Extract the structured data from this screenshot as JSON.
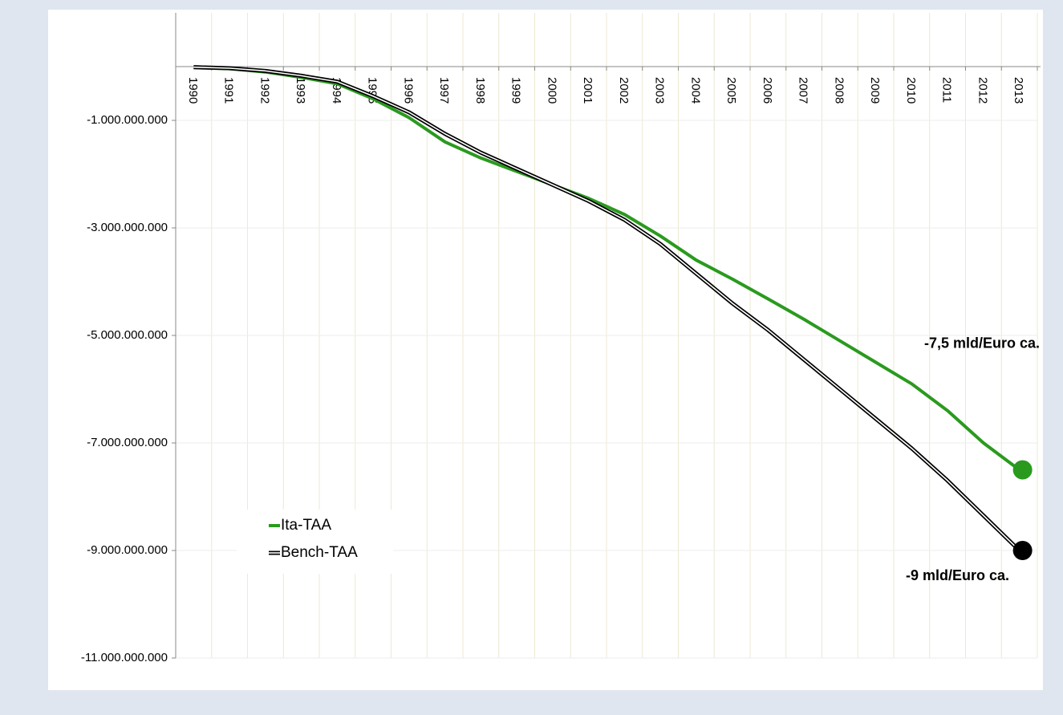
{
  "chart_data": {
    "type": "line",
    "categories": [
      "1990",
      "1991",
      "1992",
      "1993",
      "1994",
      "1995",
      "1996",
      "1997",
      "1998",
      "1999",
      "2000",
      "2001",
      "2002",
      "2003",
      "2004",
      "2005",
      "2006",
      "2007",
      "2008",
      "2009",
      "2010",
      "2011",
      "2012",
      "2013"
    ],
    "series": [
      {
        "name": "Ita-TAA",
        "color": "#2a9a1e",
        "values": [
          -20000000,
          -40000000,
          -100000000,
          -200000000,
          -320000000,
          -600000000,
          -950000000,
          -1400000000,
          -1700000000,
          -1950000000,
          -2200000000,
          -2450000000,
          -2750000000,
          -3150000000,
          -3600000000,
          -3950000000,
          -4320000000,
          -4700000000,
          -5100000000,
          -5500000000,
          -5900000000,
          -6400000000,
          -7000000000,
          -7500000000
        ]
      },
      {
        "name": "Bench-TAA",
        "color": "#000000",
        "values": [
          -10000000,
          -30000000,
          -80000000,
          -170000000,
          -280000000,
          -550000000,
          -850000000,
          -1250000000,
          -1600000000,
          -1900000000,
          -2200000000,
          -2500000000,
          -2850000000,
          -3300000000,
          -3850000000,
          -4400000000,
          -4900000000,
          -5450000000,
          -6000000000,
          -6550000000,
          -7100000000,
          -7700000000,
          -8350000000,
          -9000000000
        ]
      }
    ],
    "annotations": [
      "-7,5 mld/Euro ca.",
      "-9 mld/Euro ca."
    ],
    "ylim": [
      -11000000000,
      1000000000
    ],
    "yticks": [
      {
        "value": -1000000000,
        "label": "-1.000.000.000"
      },
      {
        "value": -3000000000,
        "label": "-3.000.000.000"
      },
      {
        "value": -5000000000,
        "label": "-5.000.000.000"
      },
      {
        "value": -7000000000,
        "label": "-7.000.000.000"
      },
      {
        "value": -9000000000,
        "label": "-9.000.000.000"
      },
      {
        "value": -11000000000,
        "label": "-11.000.000.000"
      }
    ],
    "grid": true,
    "legend": "lower-left"
  }
}
